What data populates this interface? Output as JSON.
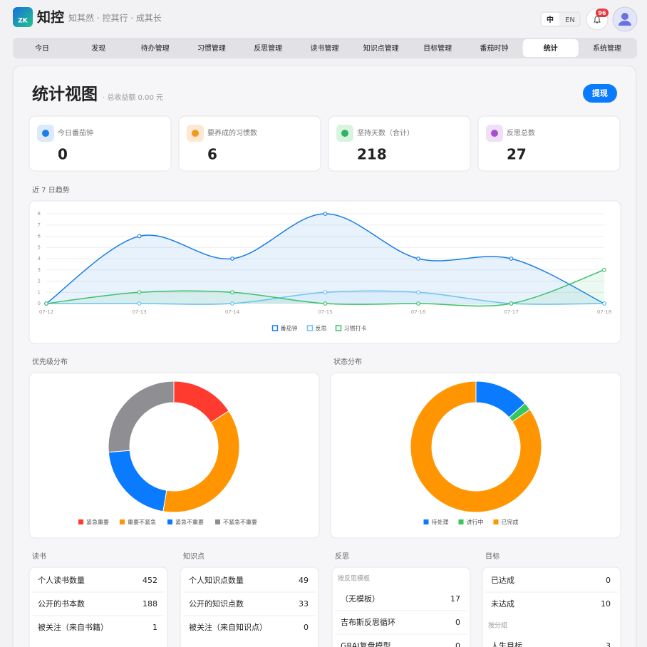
{
  "header": {
    "logo": "ZK",
    "app_name": "知控",
    "slogan": "知其然 · 控其行 · 成其长",
    "lang": [
      "中",
      "EN"
    ],
    "notifications": "96"
  },
  "nav": {
    "tabs": [
      "今日",
      "发现",
      "待办管理",
      "习惯管理",
      "反思管理",
      "读书管理",
      "知识点管理",
      "目标管理",
      "番茄时钟",
      "统计",
      "系统管理"
    ],
    "active": 9
  },
  "page": {
    "title": "统计视图",
    "subtitle": "· 总收益额 0.00 元",
    "button": "提现"
  },
  "stats": [
    {
      "label": "今日番茄钟",
      "value": 0,
      "color": "#1a7ee6",
      "bg": "#dbe9fb"
    },
    {
      "label": "要养成的习惯数",
      "value": 6,
      "color": "#f39a1e",
      "bg": "#fde8d4"
    },
    {
      "label": "坚持天数（合计）",
      "value": 218,
      "color": "#2fb562",
      "bg": "#d9f3e1"
    },
    {
      "label": "反思总数",
      "value": 27,
      "color": "#a54fd6",
      "bg": "#efe0f8"
    }
  ],
  "chart_data": [
    {
      "type": "line",
      "title": "近 7 日趋势",
      "categories": [
        "07-12",
        "07-13",
        "07-14",
        "07-15",
        "07-16",
        "07-17",
        "07-18"
      ],
      "ylim": [
        0,
        8
      ],
      "yticks": [
        0,
        1,
        2,
        3,
        4,
        5,
        6,
        7,
        8
      ],
      "grid": true,
      "series": [
        {
          "name": "番茄钟",
          "color": "#1a7ee6",
          "values": [
            0,
            6,
            4,
            8,
            4,
            4,
            0
          ]
        },
        {
          "name": "反思",
          "color": "#6cc4f0",
          "values": [
            0,
            0,
            0,
            1,
            1,
            0,
            0
          ]
        },
        {
          "name": "习惯打卡",
          "color": "#3cc06a",
          "values": [
            0,
            1,
            1,
            0,
            0,
            0,
            3
          ]
        }
      ]
    },
    {
      "type": "donut",
      "title": "优先级分布",
      "categories": [
        "紧急重要",
        "重要不紧急",
        "紧急不重要",
        "不紧急不重要"
      ],
      "values": [
        3,
        7,
        4,
        5
      ],
      "colors": [
        "#ff3b30",
        "#ff9500",
        "#0a7aff",
        "#8e8e93"
      ]
    },
    {
      "type": "donut",
      "title": "状态分布",
      "categories": [
        "待处理",
        "进行中",
        "已完成"
      ],
      "values": [
        7,
        1,
        44
      ],
      "colors": [
        "#0a7aff",
        "#34c759",
        "#ff9500"
      ]
    }
  ],
  "panels": [
    {
      "title": "读书",
      "items": [
        [
          "个人读书数量",
          452
        ],
        [
          "公开的书本数",
          188
        ],
        [
          "被关注（来自书籍）",
          1
        ]
      ]
    },
    {
      "title": "知识点",
      "items": [
        [
          "个人知识点数量",
          49
        ],
        [
          "公开的知识点数",
          33
        ],
        [
          "被关注（来自知识点）",
          0
        ]
      ]
    },
    {
      "title": "反思",
      "items": [
        "按反思模板",
        [
          "（无模板）",
          17
        ],
        [
          "吉布斯反思循环",
          0
        ],
        [
          "GRAI复盘模型",
          0
        ]
      ]
    },
    {
      "title": "目标",
      "items": [
        [
          "已达成",
          0
        ],
        [
          "未达成",
          10
        ],
        "按分组",
        [
          "人生目标",
          3
        ]
      ]
    }
  ]
}
